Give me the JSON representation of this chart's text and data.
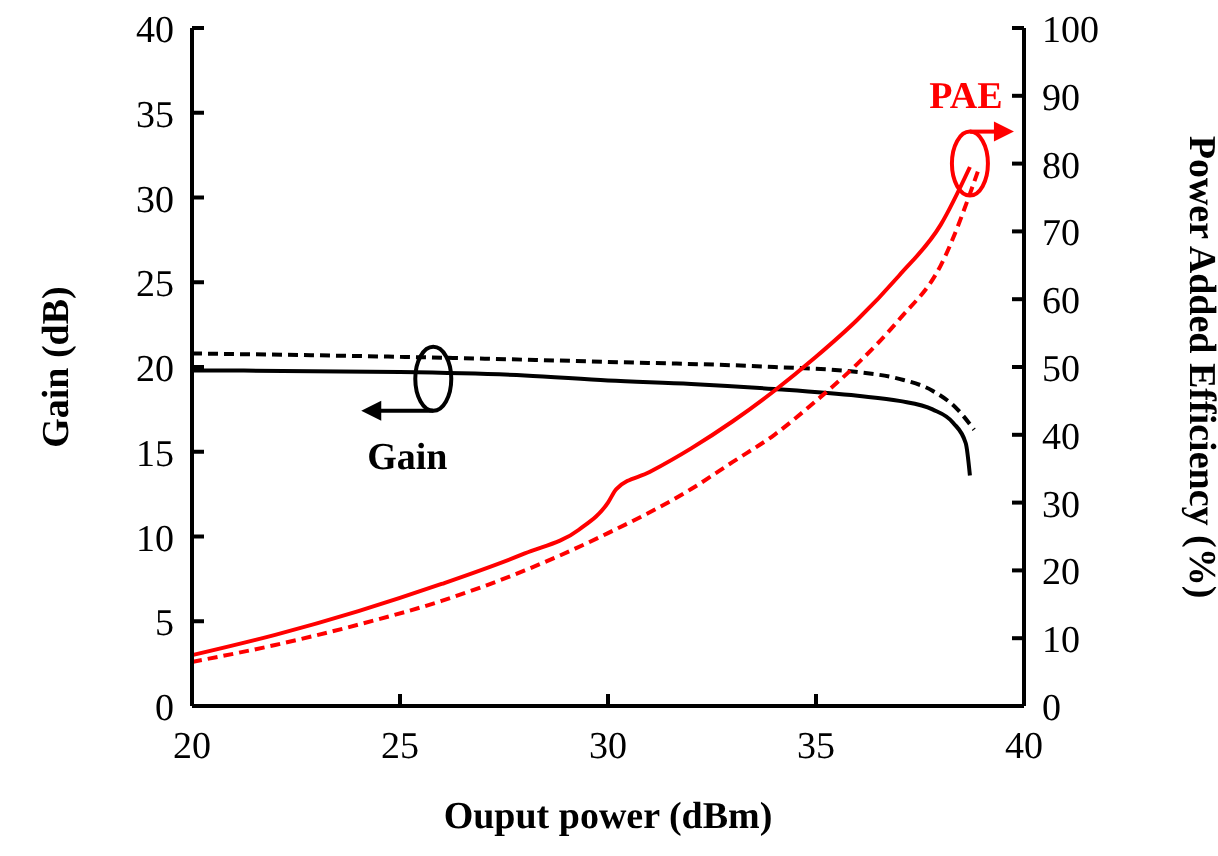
{
  "chart_data": {
    "type": "line",
    "xlabel": "Ouput power (dBm)",
    "ylabel": "Gain (dB)",
    "y2label": "Power Added Efficiency (%)",
    "xlim": [
      20,
      40
    ],
    "xticks": [
      20,
      25,
      30,
      35,
      40
    ],
    "ylim": [
      0,
      40
    ],
    "yticks": [
      0,
      5,
      10,
      15,
      20,
      25,
      30,
      35,
      40
    ],
    "y2lim": [
      0,
      100
    ],
    "y2ticks": [
      0,
      10,
      20,
      30,
      40,
      50,
      60,
      70,
      80,
      90,
      100
    ],
    "grid": false,
    "marker": "none",
    "series": [
      {
        "color": "#000000",
        "line_style": "solid",
        "x": [
          20,
          25,
          28,
          30,
          32,
          34,
          36,
          37,
          37.8,
          38.3,
          38.6,
          38.7
        ],
        "values": [
          19.8,
          19.7,
          19.5,
          19.2,
          19.0,
          18.7,
          18.3,
          18.0,
          17.5,
          16.7,
          15.5,
          13.6
        ]
      },
      {
        "color": "#000000",
        "line_style": "dashed",
        "x": [
          20,
          25,
          30,
          34,
          36,
          37,
          37.8,
          38.4,
          38.8
        ],
        "values": [
          20.8,
          20.6,
          20.3,
          20.0,
          19.7,
          19.3,
          18.6,
          17.5,
          16.3
        ]
      },
      {
        "color": "#ff0000",
        "line_style": "solid",
        "axis": "y2",
        "x": [
          20,
          22,
          24,
          26,
          28,
          29.3,
          30,
          30.2,
          31,
          32,
          33,
          34,
          35,
          36,
          37,
          38,
          38.7
        ],
        "values": [
          7.5,
          10.5,
          14,
          18,
          22.5,
          26,
          30,
          32,
          34.5,
          38,
          42,
          46.5,
          51.5,
          57,
          63.5,
          71,
          79.5
        ]
      },
      {
        "color": "#ff0000",
        "line_style": "dashed",
        "axis": "y2",
        "x": [
          20,
          22,
          24,
          26,
          28,
          30,
          32,
          33,
          34,
          35,
          36,
          37,
          38,
          38.9
        ],
        "values": [
          6.5,
          9,
          12,
          15.5,
          20,
          25.5,
          32,
          36,
          40,
          45,
          50.5,
          57,
          65,
          79
        ]
      }
    ],
    "annotations": [
      {
        "text": "Gain",
        "x": 25.8,
        "y": 19.3
      },
      {
        "text": "PAE",
        "x": 38.7,
        "y": 32
      }
    ]
  }
}
